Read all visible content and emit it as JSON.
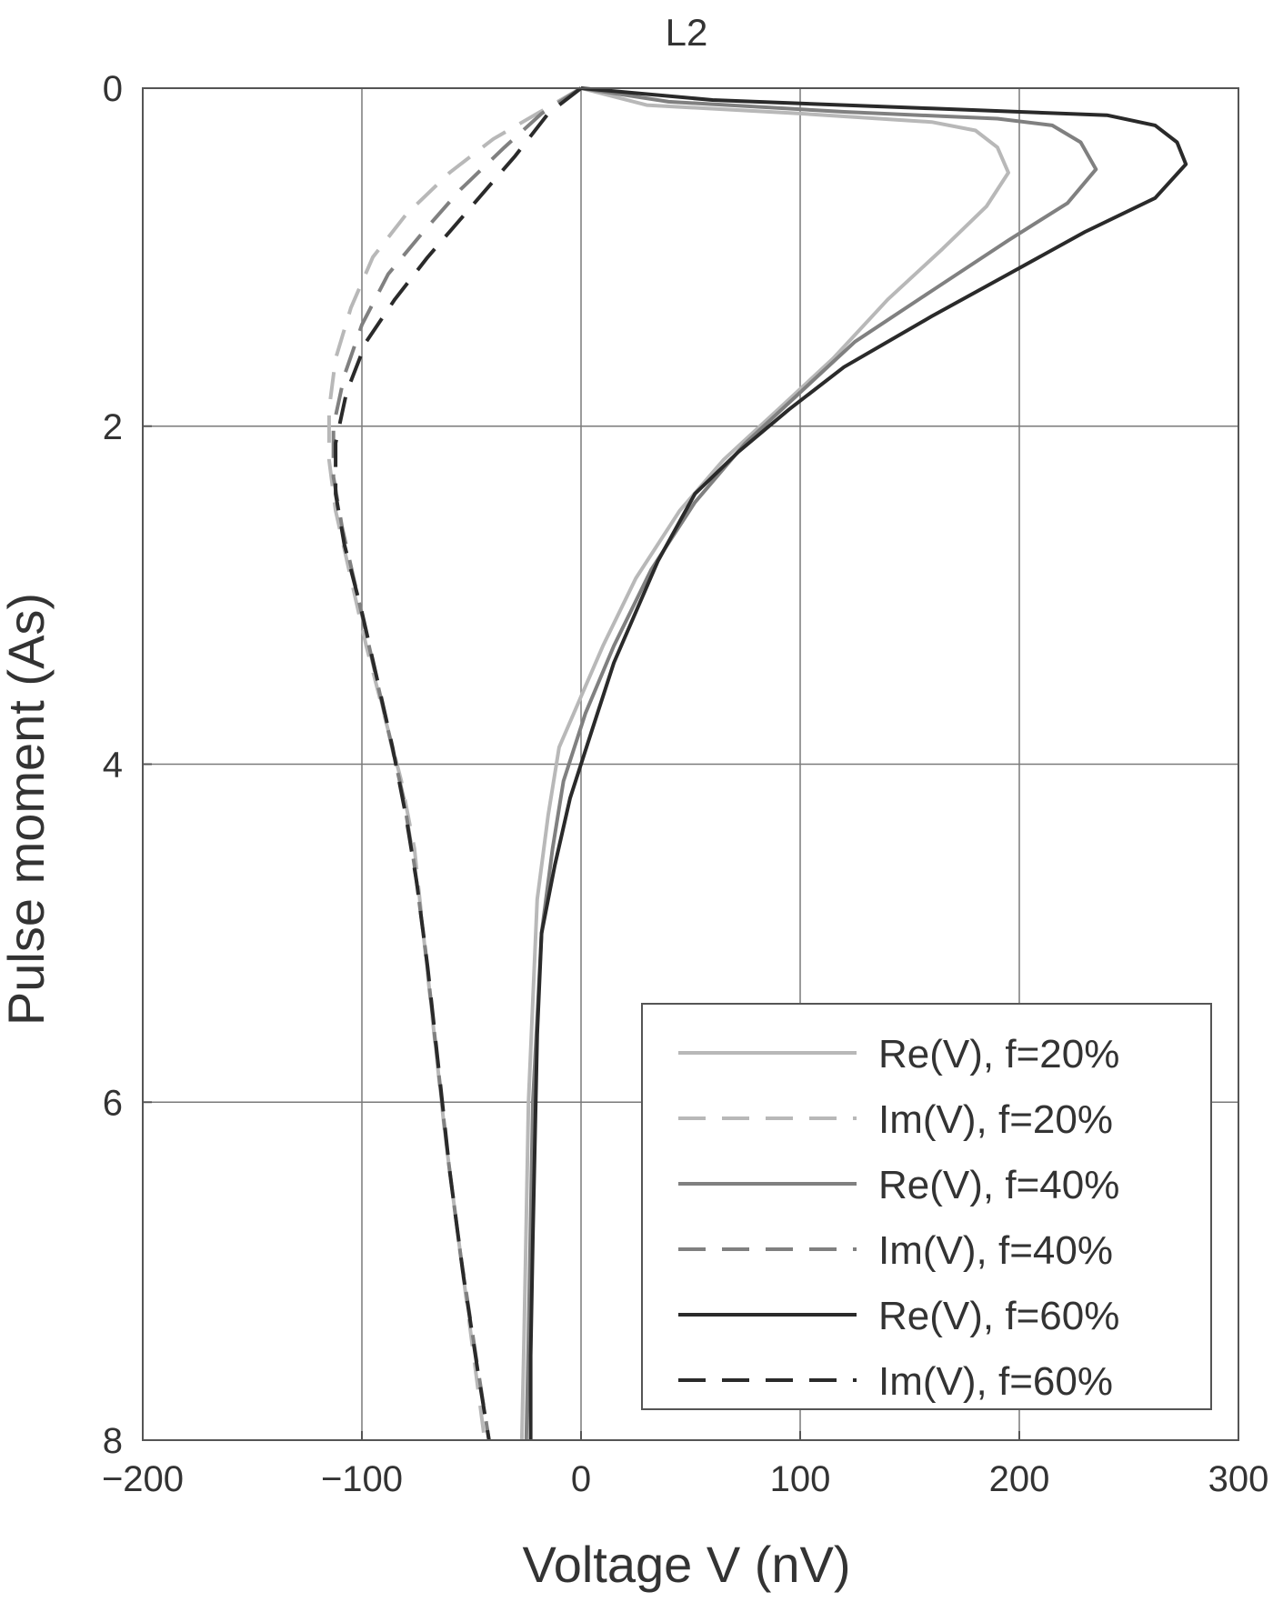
{
  "chart_data": {
    "type": "line",
    "title": "L2",
    "xlabel": "Voltage V (nV)",
    "ylabel": "Pulse moment (As)",
    "xlim": [
      -200,
      300
    ],
    "ylim": [
      0,
      8
    ],
    "y_inverted": true,
    "xticks": [
      -200,
      -100,
      0,
      100,
      200,
      300
    ],
    "yticks": [
      0,
      2,
      4,
      6,
      8
    ],
    "xtick_labels": [
      "−200",
      "−100",
      "0",
      "100",
      "200",
      "300"
    ],
    "ytick_labels": [
      "0",
      "2",
      "4",
      "6",
      "8"
    ],
    "grid": true,
    "legend_position": "lower-right",
    "series": [
      {
        "name": "Re(V), f=20%",
        "style": "solid",
        "color": "#b8b8b8",
        "points": [
          [
            0,
            0
          ],
          [
            30,
            0.1
          ],
          [
            100,
            0.15
          ],
          [
            160,
            0.2
          ],
          [
            180,
            0.25
          ],
          [
            190,
            0.35
          ],
          [
            195,
            0.5
          ],
          [
            185,
            0.7
          ],
          [
            165,
            0.95
          ],
          [
            140,
            1.25
          ],
          [
            115,
            1.6
          ],
          [
            90,
            1.9
          ],
          [
            65,
            2.2
          ],
          [
            45,
            2.5
          ],
          [
            25,
            2.9
          ],
          [
            10,
            3.3
          ],
          [
            0,
            3.6
          ],
          [
            -10,
            3.9
          ],
          [
            -15,
            4.3
          ],
          [
            -20,
            4.8
          ],
          [
            -22,
            5.4
          ],
          [
            -24,
            6.0
          ],
          [
            -25,
            6.7
          ],
          [
            -26,
            7.4
          ],
          [
            -27,
            8.0
          ]
        ]
      },
      {
        "name": "Im(V), f=20%",
        "style": "dashed",
        "color": "#b8b8b8",
        "points": [
          [
            0,
            0
          ],
          [
            -20,
            0.15
          ],
          [
            -40,
            0.3
          ],
          [
            -60,
            0.5
          ],
          [
            -80,
            0.75
          ],
          [
            -95,
            1.0
          ],
          [
            -105,
            1.3
          ],
          [
            -112,
            1.6
          ],
          [
            -115,
            1.9
          ],
          [
            -115,
            2.2
          ],
          [
            -112,
            2.5
          ],
          [
            -105,
            2.9
          ],
          [
            -98,
            3.3
          ],
          [
            -90,
            3.7
          ],
          [
            -82,
            4.1
          ],
          [
            -76,
            4.5
          ],
          [
            -72,
            5.0
          ],
          [
            -67,
            5.6
          ],
          [
            -62,
            6.2
          ],
          [
            -56,
            6.8
          ],
          [
            -50,
            7.4
          ],
          [
            -44,
            8.0
          ]
        ]
      },
      {
        "name": "Re(V), f=40%",
        "style": "solid",
        "color": "#808080",
        "points": [
          [
            0,
            0
          ],
          [
            40,
            0.08
          ],
          [
            120,
            0.14
          ],
          [
            190,
            0.18
          ],
          [
            215,
            0.22
          ],
          [
            228,
            0.32
          ],
          [
            235,
            0.48
          ],
          [
            222,
            0.68
          ],
          [
            195,
            0.9
          ],
          [
            160,
            1.2
          ],
          [
            125,
            1.5
          ],
          [
            100,
            1.8
          ],
          [
            75,
            2.1
          ],
          [
            52,
            2.45
          ],
          [
            32,
            2.85
          ],
          [
            15,
            3.3
          ],
          [
            2,
            3.7
          ],
          [
            -8,
            4.1
          ],
          [
            -13,
            4.5
          ],
          [
            -18,
            5.0
          ],
          [
            -20,
            5.5
          ],
          [
            -22,
            6.0
          ],
          [
            -23,
            6.7
          ],
          [
            -24,
            7.4
          ],
          [
            -25,
            8.0
          ]
        ]
      },
      {
        "name": "Im(V), f=40%",
        "style": "dashed",
        "color": "#808080",
        "points": [
          [
            0,
            0
          ],
          [
            -18,
            0.15
          ],
          [
            -35,
            0.35
          ],
          [
            -55,
            0.6
          ],
          [
            -72,
            0.85
          ],
          [
            -88,
            1.1
          ],
          [
            -100,
            1.4
          ],
          [
            -108,
            1.7
          ],
          [
            -113,
            2.0
          ],
          [
            -113,
            2.3
          ],
          [
            -109,
            2.6
          ],
          [
            -102,
            3.0
          ],
          [
            -95,
            3.4
          ],
          [
            -88,
            3.8
          ],
          [
            -81,
            4.2
          ],
          [
            -76,
            4.6
          ],
          [
            -71,
            5.1
          ],
          [
            -66,
            5.7
          ],
          [
            -61,
            6.3
          ],
          [
            -55,
            6.9
          ],
          [
            -48,
            7.5
          ],
          [
            -42,
            8.0
          ]
        ]
      },
      {
        "name": "Re(V), f=60%",
        "style": "solid",
        "color": "#2a2a2a",
        "points": [
          [
            0,
            0
          ],
          [
            60,
            0.07
          ],
          [
            160,
            0.12
          ],
          [
            240,
            0.16
          ],
          [
            262,
            0.22
          ],
          [
            272,
            0.32
          ],
          [
            276,
            0.45
          ],
          [
            262,
            0.65
          ],
          [
            230,
            0.85
          ],
          [
            195,
            1.1
          ],
          [
            160,
            1.35
          ],
          [
            120,
            1.65
          ],
          [
            95,
            1.9
          ],
          [
            72,
            2.15
          ],
          [
            52,
            2.4
          ],
          [
            35,
            2.8
          ],
          [
            15,
            3.4
          ],
          [
            5,
            3.8
          ],
          [
            -5,
            4.2
          ],
          [
            -12,
            4.6
          ],
          [
            -18,
            5.0
          ],
          [
            -20,
            5.6
          ],
          [
            -21,
            6.2
          ],
          [
            -22,
            6.8
          ],
          [
            -23,
            7.5
          ],
          [
            -23,
            8.0
          ]
        ]
      },
      {
        "name": "Im(V), f=60%",
        "style": "dashed",
        "color": "#2a2a2a",
        "points": [
          [
            0,
            0
          ],
          [
            -15,
            0.15
          ],
          [
            -30,
            0.4
          ],
          [
            -50,
            0.7
          ],
          [
            -70,
            1.0
          ],
          [
            -85,
            1.25
          ],
          [
            -98,
            1.5
          ],
          [
            -107,
            1.8
          ],
          [
            -112,
            2.1
          ],
          [
            -112,
            2.4
          ],
          [
            -108,
            2.7
          ],
          [
            -100,
            3.1
          ],
          [
            -93,
            3.5
          ],
          [
            -86,
            3.9
          ],
          [
            -80,
            4.3
          ],
          [
            -75,
            4.7
          ],
          [
            -70,
            5.2
          ],
          [
            -65,
            5.8
          ],
          [
            -60,
            6.4
          ],
          [
            -54,
            7.0
          ],
          [
            -47,
            7.6
          ],
          [
            -42,
            8.0
          ]
        ]
      }
    ]
  }
}
